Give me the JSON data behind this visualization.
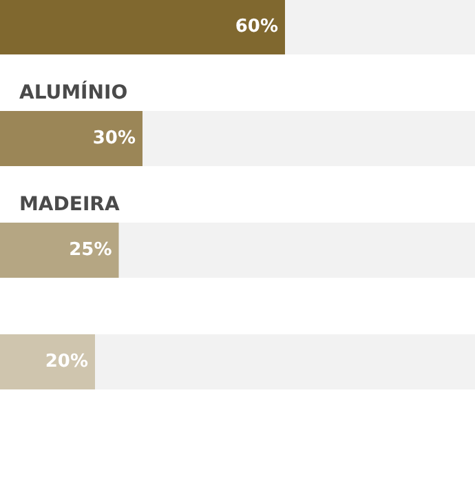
{
  "chart_data": {
    "type": "bar",
    "orientation": "horizontal",
    "categories": [
      null,
      "ALUMÍNIO",
      "MADEIRA",
      null
    ],
    "values": [
      60,
      30,
      25,
      20
    ],
    "colors": [
      "#80682f",
      "#9b8657",
      "#b5a683",
      "#cfc5ae"
    ],
    "value_labels": [
      "60%",
      "30%",
      "25%",
      "20%"
    ],
    "xlim": [
      0,
      100
    ],
    "tick_labels": "y"
  }
}
